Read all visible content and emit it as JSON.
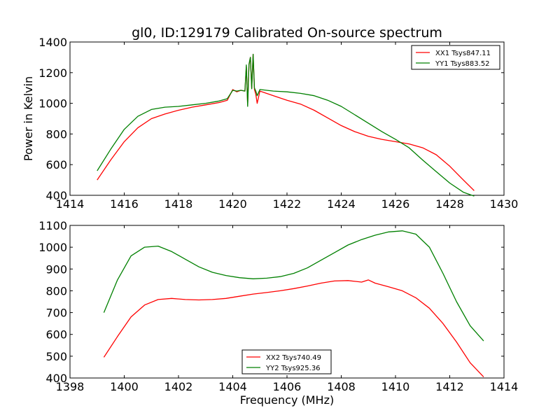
{
  "title": "gl0, ID:129179 Calibrated On-source spectrum",
  "chart_data": [
    {
      "type": "line",
      "ylabel": "Power in Kelvin",
      "xlabel": "",
      "xlim": [
        1414,
        1430
      ],
      "ylim": [
        400,
        1400
      ],
      "xticks": [
        1414,
        1416,
        1418,
        1420,
        1422,
        1424,
        1426,
        1428,
        1430
      ],
      "yticks": [
        400,
        600,
        800,
        1000,
        1200,
        1400
      ],
      "grid": false,
      "legend_position": "top-right",
      "series": [
        {
          "name": "XX1 Tsys847.11",
          "color": "#ff0000",
          "x": [
            1415.0,
            1415.5,
            1416.0,
            1416.5,
            1417.0,
            1417.5,
            1418.0,
            1418.5,
            1419.0,
            1419.5,
            1419.8,
            1420.0,
            1420.15,
            1420.3,
            1420.45,
            1420.5,
            1420.55,
            1420.6,
            1420.65,
            1420.7,
            1420.75,
            1420.8,
            1420.85,
            1420.9,
            1421.0,
            1421.5,
            1422.0,
            1422.5,
            1423.0,
            1423.5,
            1424.0,
            1424.5,
            1425.0,
            1425.5,
            1426.0,
            1426.5,
            1427.0,
            1427.5,
            1428.0,
            1428.5,
            1428.9
          ],
          "y": [
            500,
            630,
            750,
            840,
            900,
            930,
            955,
            975,
            990,
            1005,
            1020,
            1090,
            1075,
            1085,
            1080,
            1240,
            990,
            1250,
            1300,
            1100,
            1320,
            1090,
            1060,
            1000,
            1080,
            1050,
            1020,
            995,
            955,
            905,
            855,
            815,
            785,
            765,
            750,
            735,
            710,
            665,
            590,
            500,
            430
          ]
        },
        {
          "name": "YY1 Tsys883.52",
          "color": "#008000",
          "x": [
            1415.0,
            1415.5,
            1416.0,
            1416.5,
            1417.0,
            1417.5,
            1418.0,
            1418.5,
            1419.0,
            1419.5,
            1419.8,
            1420.0,
            1420.15,
            1420.3,
            1420.45,
            1420.5,
            1420.55,
            1420.6,
            1420.65,
            1420.7,
            1420.75,
            1420.8,
            1420.85,
            1420.9,
            1421.0,
            1421.5,
            1422.0,
            1422.5,
            1423.0,
            1423.5,
            1424.0,
            1424.5,
            1425.0,
            1425.5,
            1426.0,
            1426.5,
            1427.0,
            1427.5,
            1428.0,
            1428.5,
            1428.9
          ],
          "y": [
            560,
            700,
            830,
            915,
            960,
            975,
            980,
            990,
            1000,
            1015,
            1030,
            1085,
            1080,
            1085,
            1080,
            1250,
            980,
            1255,
            1300,
            1095,
            1320,
            1100,
            1080,
            1050,
            1090,
            1080,
            1075,
            1065,
            1050,
            1020,
            980,
            925,
            870,
            815,
            765,
            710,
            630,
            555,
            480,
            420,
            395
          ]
        }
      ]
    },
    {
      "type": "line",
      "ylabel": "",
      "xlabel": "Frequency (MHz)",
      "xlim": [
        1398,
        1414
      ],
      "ylim": [
        400,
        1100
      ],
      "xticks": [
        1398,
        1400,
        1402,
        1404,
        1406,
        1408,
        1410,
        1412,
        1414
      ],
      "yticks": [
        400,
        500,
        600,
        700,
        800,
        900,
        1000,
        1100
      ],
      "grid": false,
      "legend_position": "bottom-center",
      "series": [
        {
          "name": "XX2 Tsys740.49",
          "color": "#ff0000",
          "x": [
            1399.25,
            1399.75,
            1400.25,
            1400.75,
            1401.25,
            1401.75,
            1402.25,
            1402.75,
            1403.25,
            1403.75,
            1404.25,
            1404.75,
            1405.25,
            1405.75,
            1406.25,
            1406.75,
            1407.25,
            1407.75,
            1408.25,
            1408.75,
            1409.0,
            1409.25,
            1409.75,
            1410.25,
            1410.75,
            1411.25,
            1411.75,
            1412.25,
            1412.75,
            1413.25
          ],
          "y": [
            495,
            590,
            680,
            735,
            760,
            765,
            760,
            758,
            760,
            765,
            775,
            785,
            792,
            800,
            810,
            822,
            835,
            845,
            847,
            840,
            850,
            835,
            818,
            800,
            768,
            720,
            650,
            565,
            470,
            405
          ]
        },
        {
          "name": "YY2 Tsys925.36",
          "color": "#008000",
          "x": [
            1399.25,
            1399.75,
            1400.25,
            1400.75,
            1401.25,
            1401.75,
            1402.25,
            1402.75,
            1403.25,
            1403.75,
            1404.25,
            1404.75,
            1405.25,
            1405.75,
            1406.25,
            1406.75,
            1407.25,
            1407.75,
            1408.25,
            1408.75,
            1409.25,
            1409.75,
            1410.25,
            1410.75,
            1411.25,
            1411.75,
            1412.25,
            1412.75,
            1413.25
          ],
          "y": [
            700,
            850,
            960,
            1000,
            1005,
            980,
            945,
            910,
            885,
            870,
            860,
            855,
            858,
            865,
            880,
            905,
            940,
            975,
            1010,
            1035,
            1055,
            1070,
            1075,
            1060,
            1000,
            880,
            750,
            640,
            570
          ]
        }
      ]
    }
  ]
}
